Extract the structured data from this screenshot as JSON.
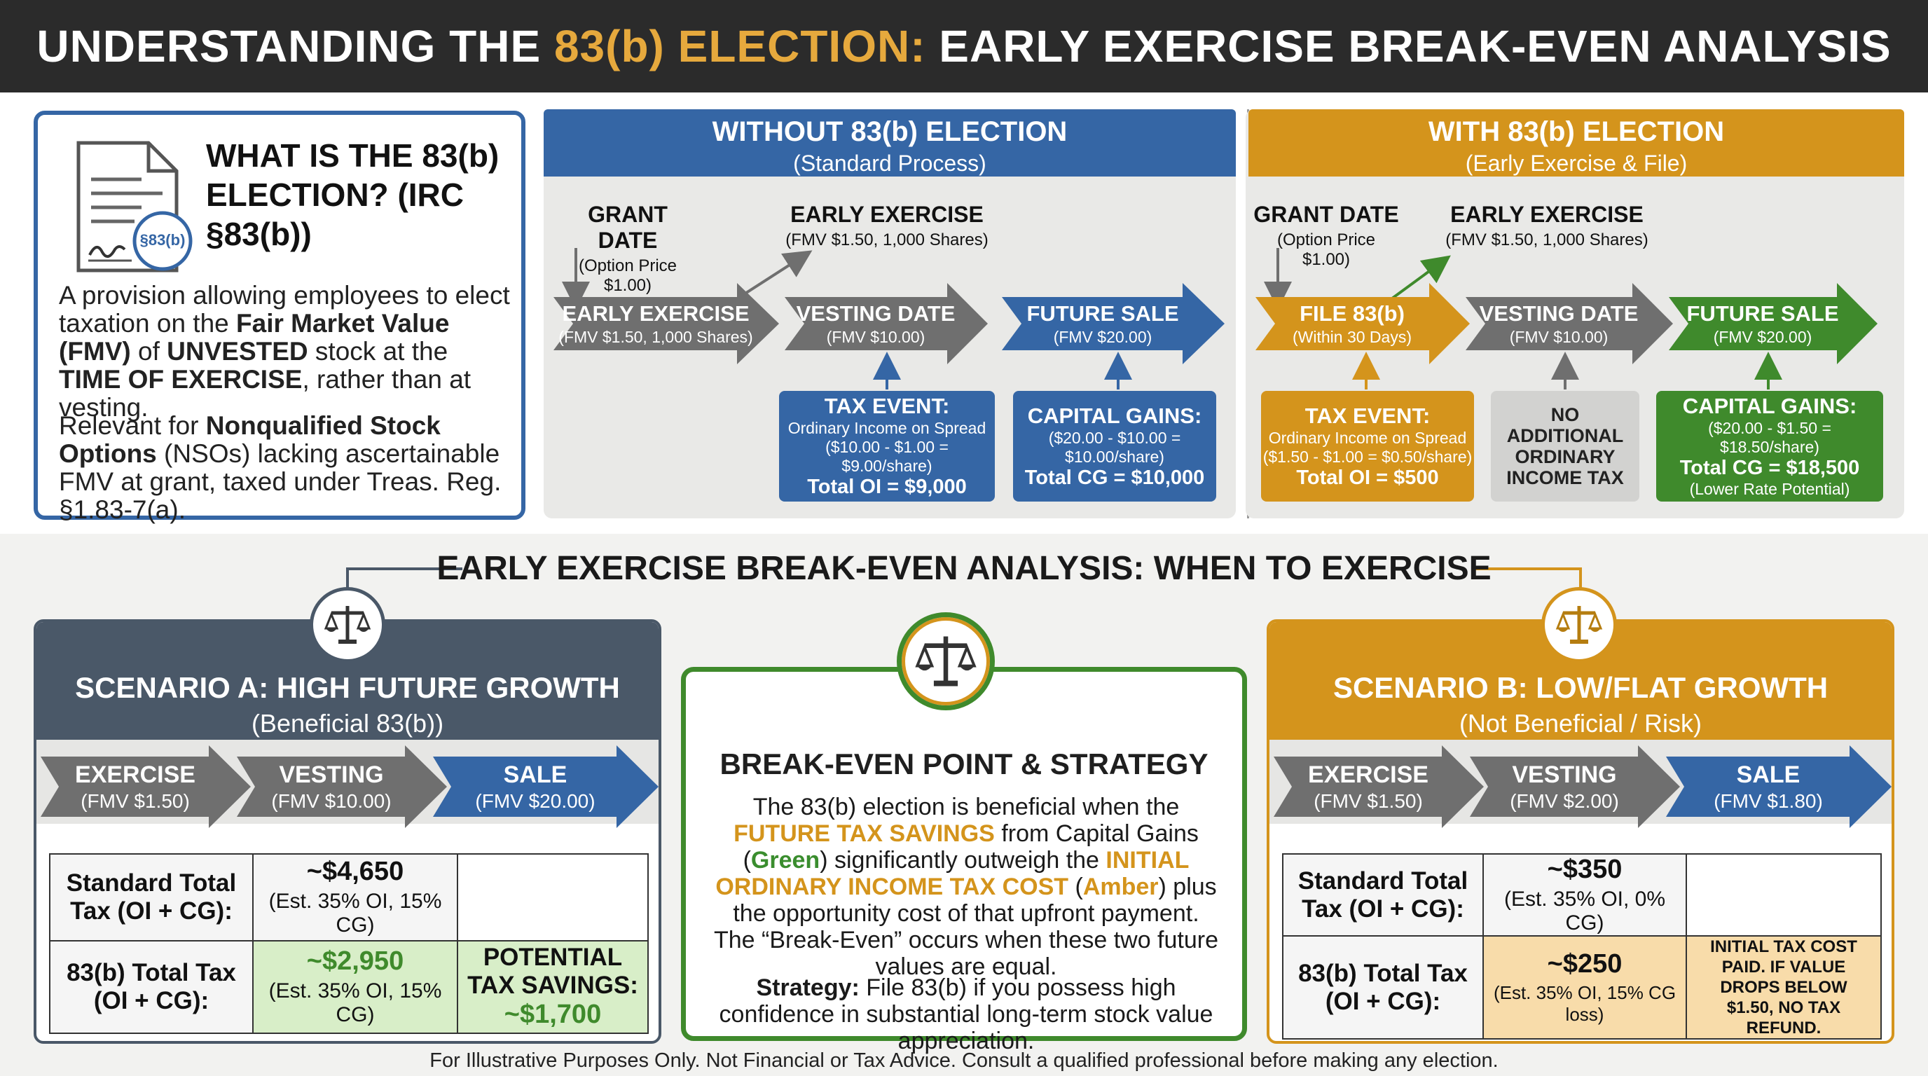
{
  "header": {
    "title_pre": "UNDERSTANDING THE ",
    "title_hl": "83(b) ELECTION:",
    "title_post": " EARLY EXERCISE BREAK-EVEN ANALYSIS"
  },
  "definition": {
    "doc_stamp": "§83(b)",
    "title": "WHAT IS THE 83(b) ELECTION? (IRC §83(b))",
    "p1_a": "A provision allowing employees to elect taxation on the ",
    "p1_b": "Fair Market Value (FMV)",
    "p1_c": " of ",
    "p1_d": "UNVESTED",
    "p1_e": " stock at the ",
    "p1_f": "TIME OF EXERCISE",
    "p1_g": ", rather than at vesting.",
    "p2_a": "Relevant for ",
    "p2_b": "Nonqualified Stock Options",
    "p2_c": " (NSOs) lacking ascertainable FMV at grant, taxed under Treas. Reg. §1.83-7(a)."
  },
  "without": {
    "title": "WITHOUT 83(b) ELECTION",
    "subtitle": "(Standard Process)",
    "grant_title": "GRANT DATE",
    "grant_sub": "(Option Price $1.00)",
    "early_title": "EARLY EXERCISE",
    "early_sub": "(FMV $1.50, 1,000 Shares)",
    "a1_title": "EARLY EXERCISE",
    "a1_sub": "(FMV $1.50, 1,000 Shares)",
    "a2_title": "VESTING DATE",
    "a2_sub": "(FMV $10.00)",
    "a3_title": "FUTURE SALE",
    "a3_sub": "(FMV $20.00)",
    "box1_title": "TAX EVENT:",
    "box1_l1": "Ordinary Income on Spread",
    "box1_l2": "($10.00 - $1.00 = $9.00/share)",
    "box1_total": "Total OI = $9,000",
    "box2_title": "CAPITAL GAINS:",
    "box2_l1": "($20.00 - $10.00 =",
    "box2_l2": "$10.00/share)",
    "box2_total": "Total CG = $10,000"
  },
  "with": {
    "title": "WITH 83(b) ELECTION",
    "subtitle": "(Early Exercise & File)",
    "grant_title": "GRANT DATE",
    "grant_sub": "(Option Price $1.00)",
    "early_title": "EARLY EXERCISE",
    "early_sub": "(FMV $1.50, 1,000 Shares)",
    "a1_title": "FILE 83(b)",
    "a1_sub": "(Within 30 Days)",
    "a2_title": "VESTING DATE",
    "a2_sub": "(FMV $10.00)",
    "a3_title": "FUTURE SALE",
    "a3_sub": "(FMV $20.00)",
    "box1_title": "TAX EVENT:",
    "box1_l1": "Ordinary Income on Spread",
    "box1_l2": "($1.50 - $1.00 = $0.50/share)",
    "box1_total": "Total OI = $500",
    "box2_text": "NO ADDITIONAL ORDINARY INCOME TAX",
    "box3_title": "CAPITAL GAINS:",
    "box3_l1": "($20.00 - $1.50 = $18.50/share)",
    "box3_total": "Total CG = $18,500",
    "box3_note": "(Lower Rate Potential)"
  },
  "section_title": "EARLY EXERCISE BREAK-EVEN ANALYSIS: WHEN TO EXERCISE",
  "scenario_a": {
    "title": "SCENARIO A: HIGH FUTURE GROWTH",
    "subtitle": "(Beneficial 83(b))",
    "s1_title": "EXERCISE",
    "s1_sub": "(FMV $1.50)",
    "s2_title": "VESTING",
    "s2_sub": "(FMV $10.00)",
    "s3_title": "SALE",
    "s3_sub": "(FMV $20.00)",
    "r1_label": "Standard Total Tax (OI + CG):",
    "r1_value": "~$4,650",
    "r1_note": "(Est. 35% OI, 15% CG)",
    "r2_label": "83(b) Total Tax (OI + CG):",
    "r2_value": "~$2,950",
    "r2_note": "(Est. 35% OI, 15% CG)",
    "r2_extra_label": "POTENTIAL TAX SAVINGS:",
    "r2_extra_value": "~$1,700"
  },
  "center": {
    "title": "BREAK-EVEN POINT & STRATEGY",
    "p1_a": "The 83(b) election is beneficial when the ",
    "p1_b": "FUTURE TAX SAVINGS",
    "p1_c": " from Capital Gains (",
    "p1_d": "Green",
    "p1_e": ") significantly outweigh the ",
    "p1_f": "INITIAL ORDINARY INCOME TAX COST",
    "p1_g": " (",
    "p1_h": "Amber",
    "p1_i": ") plus the opportunity cost of that upfront payment. The “Break-Even” occurs when these two future values are equal.",
    "p2_a": "Strategy:",
    "p2_b": " File 83(b) if you possess high confidence in substantial long-term stock value appreciation."
  },
  "scenario_b": {
    "title": "SCENARIO B: LOW/FLAT GROWTH",
    "subtitle": "(Not Beneficial / Risk)",
    "s1_title": "EXERCISE",
    "s1_sub": "(FMV $1.50)",
    "s2_title": "VESTING",
    "s2_sub": "(FMV $2.00)",
    "s3_title": "SALE",
    "s3_sub": "(FMV $1.80)",
    "r1_label": "Standard Total Tax (OI + CG):",
    "r1_value": "~$350",
    "r1_note": "(Est. 35% OI, 0% CG)",
    "r2_label": "83(b) Total Tax (OI + CG):",
    "r2_value": "~$250",
    "r2_note": "(Est. 35% OI, 15% CG loss)",
    "r2_extra": "INITIAL TAX COST PAID. IF VALUE DROPS BELOW $1.50, NO TAX REFUND."
  },
  "footer": "For Illustrative Purposes Only. Not Financial or Tax Advice. Consult a qualified professional before making any election.",
  "colors": {
    "blue": "#3566a5",
    "amber": "#d4941c",
    "green": "#3f8a2c",
    "gray": "#6f6f6f",
    "dark": "#2b2b2b",
    "slate": "#4a5868"
  }
}
